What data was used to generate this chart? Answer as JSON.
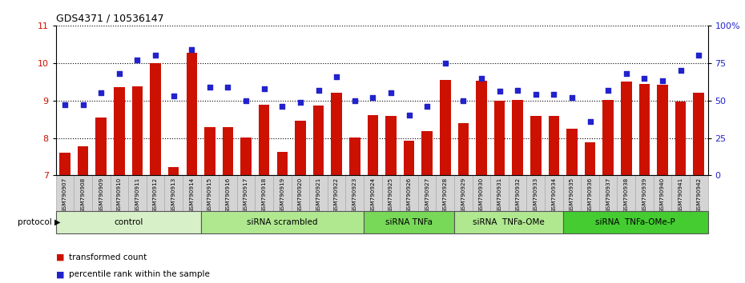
{
  "title": "GDS4371 / 10536147",
  "samples": [
    "GSM790907",
    "GSM790908",
    "GSM790909",
    "GSM790910",
    "GSM790911",
    "GSM790912",
    "GSM790913",
    "GSM790914",
    "GSM790915",
    "GSM790916",
    "GSM790917",
    "GSM790918",
    "GSM790919",
    "GSM790920",
    "GSM790921",
    "GSM790922",
    "GSM790923",
    "GSM790924",
    "GSM790925",
    "GSM790926",
    "GSM790927",
    "GSM790928",
    "GSM790929",
    "GSM790930",
    "GSM790931",
    "GSM790932",
    "GSM790933",
    "GSM790934",
    "GSM790935",
    "GSM790936",
    "GSM790937",
    "GSM790938",
    "GSM790939",
    "GSM790940",
    "GSM790941",
    "GSM790942"
  ],
  "bar_values": [
    7.6,
    7.78,
    8.55,
    9.35,
    9.38,
    10.0,
    7.22,
    10.28,
    8.3,
    8.28,
    8.02,
    8.88,
    7.62,
    8.45,
    8.87,
    9.2,
    8.02,
    8.6,
    8.58,
    7.93,
    8.18,
    9.55,
    8.4,
    9.52,
    9.0,
    9.02,
    8.58,
    8.58,
    8.25,
    7.88,
    9.02,
    9.5,
    9.45,
    9.42,
    8.98,
    9.2
  ],
  "scatter_values": [
    47,
    47,
    55,
    68,
    77,
    80,
    53,
    84,
    59,
    59,
    50,
    58,
    46,
    49,
    57,
    66,
    50,
    52,
    55,
    40,
    46,
    75,
    50,
    65,
    56,
    57,
    54,
    54,
    52,
    36,
    57,
    68,
    65,
    63,
    70,
    80
  ],
  "protocols": [
    {
      "label": "control",
      "start": 0,
      "end": 8,
      "color": "#d8f0c8"
    },
    {
      "label": "siRNA scrambled",
      "start": 8,
      "end": 17,
      "color": "#b0e890"
    },
    {
      "label": "siRNA TNFa",
      "start": 17,
      "end": 22,
      "color": "#78d858"
    },
    {
      "label": "siRNA  TNFa-OMe",
      "start": 22,
      "end": 28,
      "color": "#b0e890"
    },
    {
      "label": "siRNA  TNFa-OMe-P",
      "start": 28,
      "end": 36,
      "color": "#44cc30"
    }
  ],
  "ylim_left": [
    7,
    11
  ],
  "ylim_right": [
    0,
    100
  ],
  "yticks_left": [
    7,
    8,
    9,
    10,
    11
  ],
  "yticks_right": [
    0,
    25,
    50,
    75,
    100
  ],
  "ytick_labels_right": [
    "0",
    "25",
    "50",
    "75",
    "100%"
  ],
  "bar_color": "#cc1100",
  "scatter_color": "#2222cc",
  "bar_width": 0.6,
  "fig_width": 9.3,
  "fig_height": 3.54
}
